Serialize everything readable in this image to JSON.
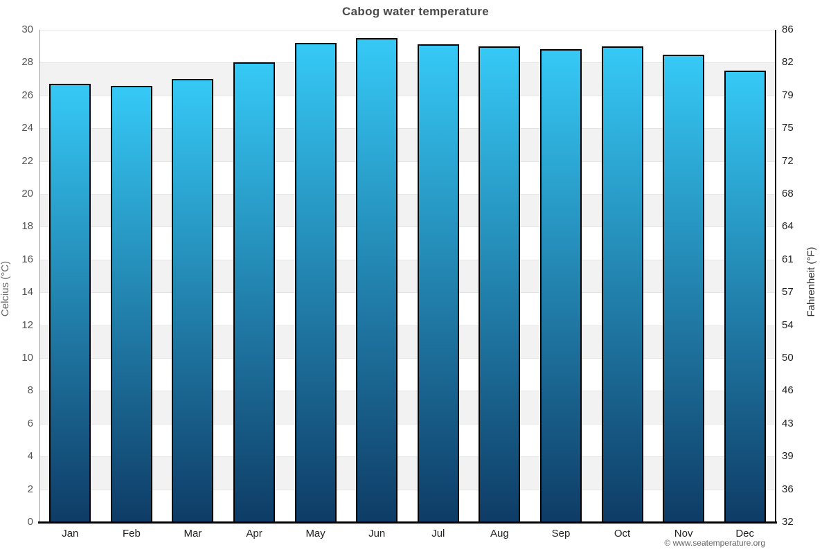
{
  "title": "Cabog water temperature",
  "footer": "© www.seatemperature.org",
  "axis": {
    "left_label": "Celcius (°C)",
    "right_label": "Fahrenheit (°F)"
  },
  "chart_data": {
    "type": "bar",
    "title": "Cabog water temperature",
    "categories": [
      "Jan",
      "Feb",
      "Mar",
      "Apr",
      "May",
      "Jun",
      "Jul",
      "Aug",
      "Sep",
      "Oct",
      "Nov",
      "Dec"
    ],
    "values": [
      26.7,
      26.6,
      27.0,
      28.0,
      29.2,
      29.5,
      29.1,
      29.0,
      28.8,
      29.0,
      28.5,
      27.5
    ],
    "series_name": "Water temperature",
    "xlabel": "",
    "ylabel_left": "Celcius (°C)",
    "ylabel_right": "Fahrenheit (°F)",
    "ylim": [
      0,
      30
    ],
    "ytick_step_celsius": 2,
    "yticks_celsius": [
      0,
      2,
      4,
      6,
      8,
      10,
      12,
      14,
      16,
      18,
      20,
      22,
      24,
      26,
      28,
      30
    ],
    "yticks_fahrenheit": [
      32,
      36,
      39,
      43,
      46,
      50,
      54,
      57,
      61,
      64,
      68,
      72,
      75,
      79,
      82,
      86
    ],
    "legend": "none",
    "grid": "alternating 2°C horizontal bands, gridline each 2°C",
    "colors": {
      "bar_gradient_top": "#36c9f6",
      "bar_gradient_bottom": "#0e3c66",
      "bar_border": "#000000",
      "band_gray": "#f2f2f2",
      "gridline": "#e5e5e5",
      "axis_left_line": "#999999",
      "axis_right_line": "#111111",
      "axis_bottom_line": "#000000",
      "title_text": "#4a4a4a",
      "tick_left_text": "#555555",
      "tick_right_text": "#222222",
      "month_text": "#222222",
      "footer_text": "#666666"
    }
  }
}
